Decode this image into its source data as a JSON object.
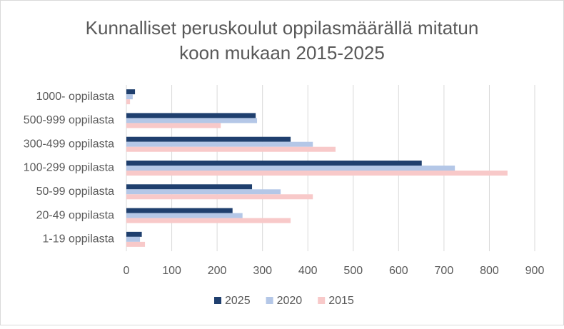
{
  "chart_data": {
    "type": "hbar",
    "title": [
      "Kunnalliset peruskoulut oppilasmäärällä mitatun",
      "koon mukaan 2015-2025"
    ],
    "categories": [
      "1000- oppilasta",
      "500-999 oppilasta",
      "300-499 oppilasta",
      "100-299 oppilasta",
      "50-99 oppilasta",
      "20-49 oppilasta",
      "1-19 oppilasta"
    ],
    "series": [
      {
        "name": "2025",
        "color": "#1f3f6e",
        "values": [
          19,
          285,
          362,
          651,
          277,
          234,
          34
        ]
      },
      {
        "name": "2020",
        "color": "#b4c7e7",
        "values": [
          14,
          288,
          411,
          724,
          340,
          256,
          30
        ]
      },
      {
        "name": "2015",
        "color": "#f8c9c9",
        "values": [
          8,
          208,
          461,
          840,
          411,
          362,
          41
        ]
      }
    ],
    "xlim": [
      0,
      900
    ],
    "xticks": [
      0,
      100,
      200,
      300,
      400,
      500,
      600,
      700,
      800,
      900
    ],
    "grid": true,
    "legend": "bottom"
  }
}
